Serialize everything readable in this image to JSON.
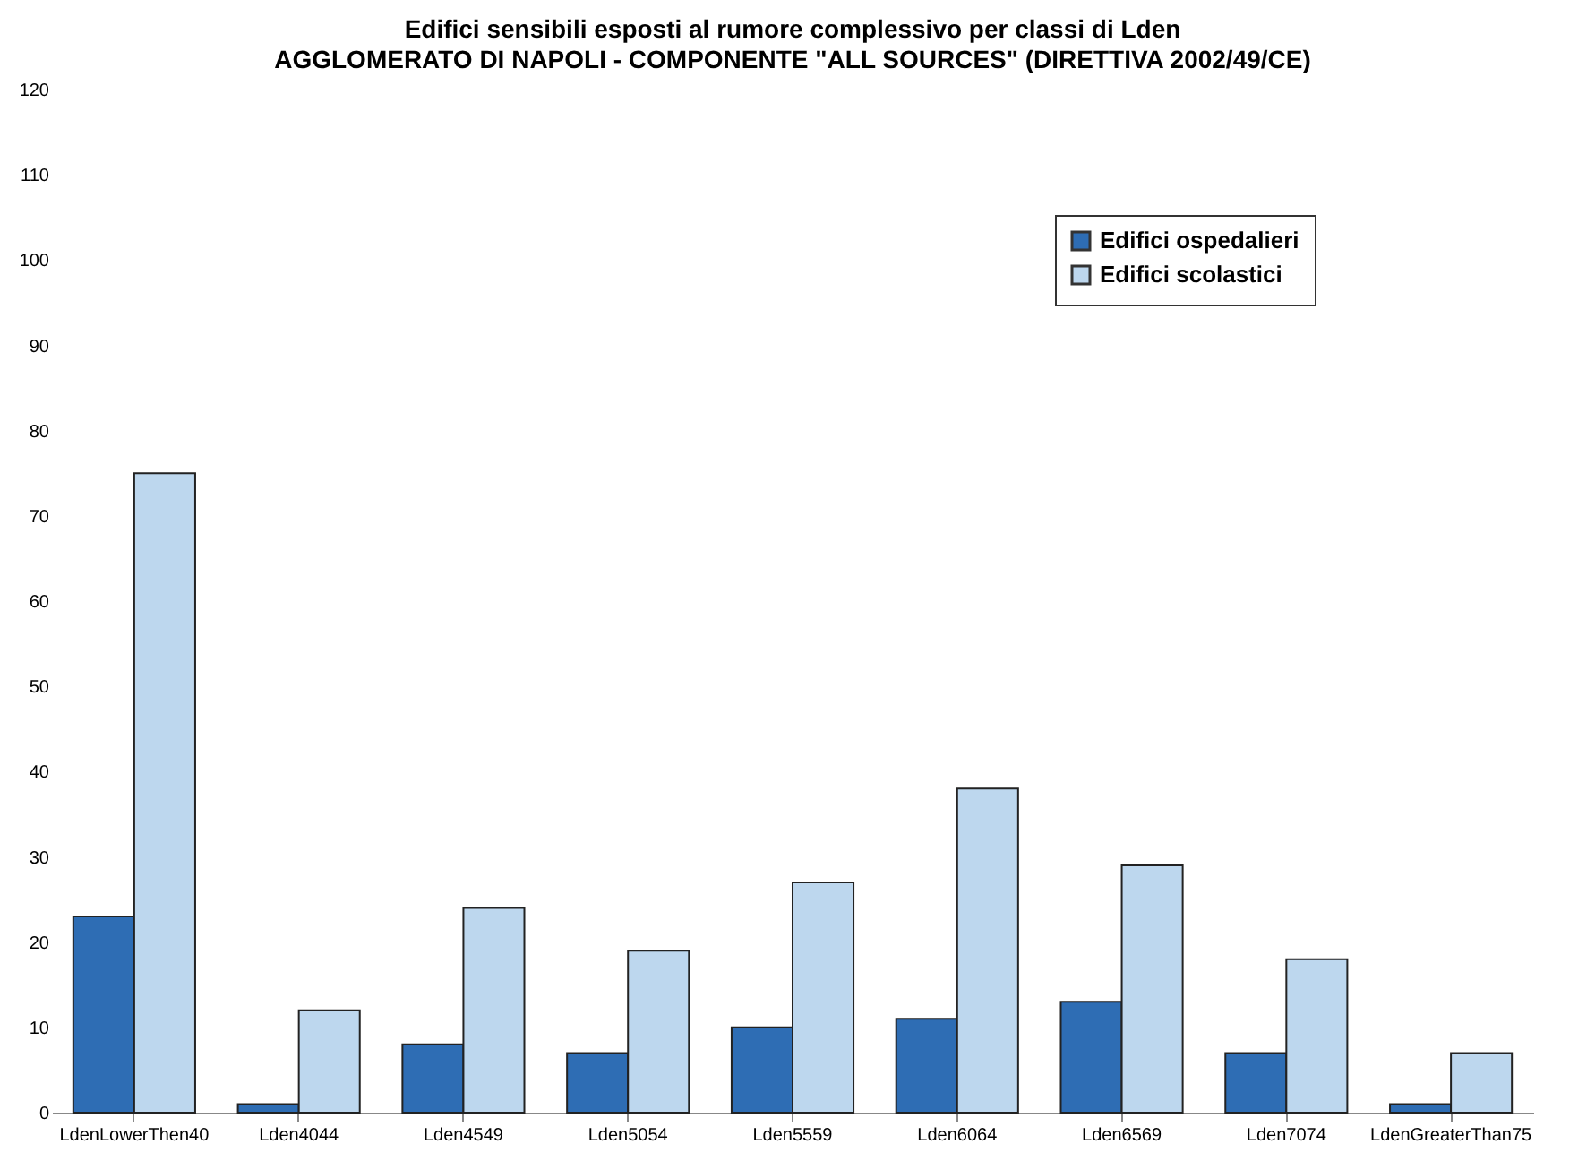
{
  "chart_data": {
    "type": "bar",
    "title": "Edifici sensibili esposti al rumore complessivo per classi di Lden",
    "subtitle": "AGGLOMERATO DI NAPOLI - COMPONENTE \"ALL SOURCES\" (DIRETTIVA 2002/49/CE)",
    "categories": [
      "LdenLowerThen40",
      "Lden4044",
      "Lden4549",
      "Lden5054",
      "Lden5559",
      "Lden6064",
      "Lden6569",
      "Lden7074",
      "LdenGreaterThan75"
    ],
    "series": [
      {
        "name": "Edifici ospedalieri",
        "color": "#2e6db4",
        "values": [
          23,
          1,
          8,
          7,
          10,
          11,
          13,
          7,
          1
        ]
      },
      {
        "name": "Edifici scolastici",
        "color": "#bdd7ee",
        "values": [
          75,
          12,
          24,
          19,
          27,
          38,
          29,
          18,
          7
        ]
      }
    ],
    "ylim": [
      0,
      120
    ],
    "yticks": [
      0,
      10,
      20,
      30,
      40,
      50,
      60,
      70,
      80,
      90,
      100,
      110,
      120
    ],
    "grid": false,
    "legend": "top right"
  }
}
